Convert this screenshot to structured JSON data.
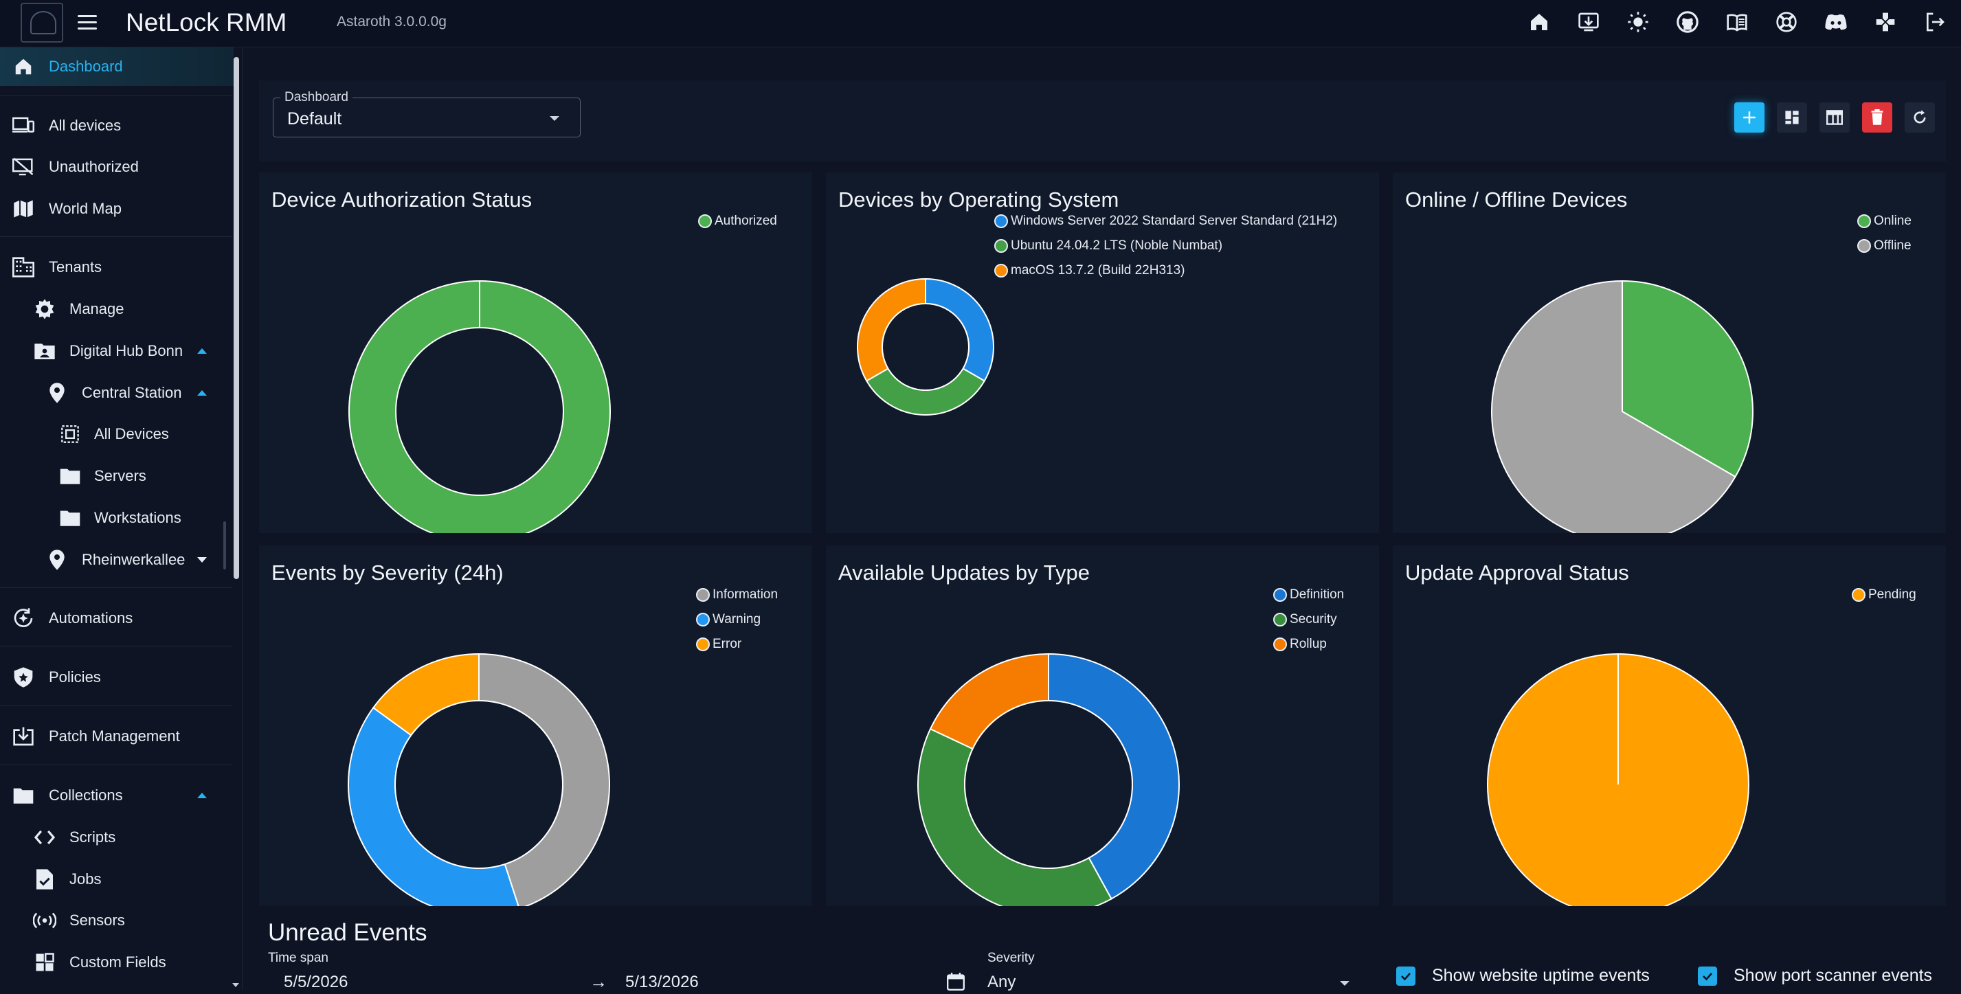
{
  "app": {
    "title": "NetLock RMM",
    "version": "Astaroth 3.0.0.0g"
  },
  "topbar_icons": [
    "home-icon",
    "download-icon",
    "brightness-icon",
    "github-icon",
    "docs-icon",
    "support-icon",
    "discord-icon",
    "gamepad-icon",
    "logout-icon"
  ],
  "sidebar": {
    "items": [
      {
        "label": "Dashboard",
        "icon": "home-icon",
        "active": true
      },
      {
        "label": "All devices",
        "icon": "devices-icon"
      },
      {
        "label": "Unauthorized",
        "icon": "unauthorized-device-icon"
      },
      {
        "label": "World Map",
        "icon": "map-icon"
      },
      {
        "label": "Tenants",
        "icon": "building-icon"
      },
      {
        "label": "Manage",
        "icon": "gear-icon"
      },
      {
        "label": "Digital Hub Bonn",
        "icon": "folder-account-icon",
        "expanded": true
      },
      {
        "label": "Central Station",
        "icon": "location-pin-icon",
        "expanded": true
      },
      {
        "label": "All Devices",
        "icon": "select-all-icon"
      },
      {
        "label": "Servers",
        "icon": "folder-icon"
      },
      {
        "label": "Workstations",
        "icon": "folder-icon"
      },
      {
        "label": "Rheinwerkallee",
        "icon": "location-pin-icon",
        "expanded": false
      },
      {
        "label": "Automations",
        "icon": "automation-icon"
      },
      {
        "label": "Policies",
        "icon": "shield-icon"
      },
      {
        "label": "Patch Management",
        "icon": "patch-download-icon"
      },
      {
        "label": "Collections",
        "icon": "folder-icon",
        "expanded": true
      },
      {
        "label": "Scripts",
        "icon": "code-icon"
      },
      {
        "label": "Jobs",
        "icon": "job-file-icon"
      },
      {
        "label": "Sensors",
        "icon": "sensor-icon"
      },
      {
        "label": "Custom Fields",
        "icon": "custom-fields-icon"
      }
    ]
  },
  "toolbar": {
    "select_label": "Dashboard",
    "select_value": "Default"
  },
  "cards": [
    {
      "title": "Device Authorization Status",
      "legend": [
        "Authorized"
      ]
    },
    {
      "title": "Devices by Operating System",
      "legend": [
        "Windows Server 2022 Standard Server Standard (21H2)",
        "Ubuntu 24.04.2 LTS (Noble Numbat)",
        "macOS 13.7.2 (Build 22H313)"
      ]
    },
    {
      "title": "Online / Offline Devices",
      "legend": [
        "Online",
        "Offline"
      ]
    },
    {
      "title": "Events by Severity (24h)",
      "legend": [
        "Information",
        "Warning",
        "Error"
      ]
    },
    {
      "title": "Available Updates by Type",
      "legend": [
        "Definition",
        "Security",
        "Rollup"
      ]
    },
    {
      "title": "Update Approval Status",
      "legend": [
        "Pending"
      ]
    }
  ],
  "chart_data": [
    {
      "type": "pie",
      "variant": "donut",
      "categories": [
        "Authorized"
      ],
      "values": [
        1
      ],
      "colors": [
        "#4caf50"
      ],
      "legend_position": "top-right"
    },
    {
      "type": "pie",
      "variant": "donut",
      "categories": [
        "Windows Server 2022 Standard Server Standard (21H2)",
        "Ubuntu 24.04.2 LTS (Noble Numbat)",
        "macOS 13.7.2 (Build 22H313)"
      ],
      "values": [
        1,
        1,
        1
      ],
      "colors": [
        "#1e88e5",
        "#43a047",
        "#fb8c00"
      ],
      "legend_position": "top-right"
    },
    {
      "type": "pie",
      "categories": [
        "Online",
        "Offline"
      ],
      "values": [
        1,
        2
      ],
      "colors": [
        "#4caf50",
        "#a3a3a3"
      ],
      "legend_position": "top-right"
    },
    {
      "type": "pie",
      "variant": "donut",
      "categories": [
        "Information",
        "Warning",
        "Error"
      ],
      "values": [
        45,
        40,
        15
      ],
      "colors": [
        "#9e9e9e",
        "#2196f3",
        "#ffa000"
      ],
      "legend_position": "top-right"
    },
    {
      "type": "pie",
      "variant": "donut",
      "categories": [
        "Definition",
        "Security",
        "Rollup"
      ],
      "values": [
        42,
        40,
        18
      ],
      "colors": [
        "#1976d2",
        "#388e3c",
        "#f57c00"
      ],
      "legend_position": "top-right"
    },
    {
      "type": "pie",
      "categories": [
        "Pending"
      ],
      "values": [
        1
      ],
      "colors": [
        "#ffa000"
      ],
      "legend_position": "top-right"
    }
  ],
  "unread": {
    "title": "Unread Events",
    "timespan_label": "Time span",
    "date_from": "5/5/2026",
    "arrow": "→",
    "date_to": "5/13/2026",
    "severity_label": "Severity",
    "severity_value": "Any",
    "chk_website": "Show website uptime events",
    "chk_port": "Show port scanner events"
  }
}
